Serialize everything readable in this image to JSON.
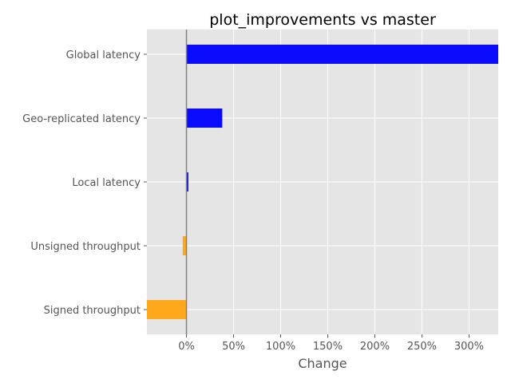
{
  "chart_data": {
    "type": "bar",
    "orientation": "horizontal",
    "title": "plot_improvements vs master",
    "xlabel": "Change",
    "ylabel": "",
    "categories": [
      "Global latency",
      "Geo-replicated latency",
      "Local latency",
      "Unsigned throughput",
      "Signed throughput"
    ],
    "values": [
      331,
      38,
      2,
      -4,
      -42
    ],
    "value_unit": "%",
    "xlim": [
      -42,
      331
    ],
    "x_ticks": [
      0,
      50,
      100,
      150,
      200,
      250,
      300
    ],
    "x_tick_labels": [
      "0%",
      "50%",
      "100%",
      "150%",
      "200%",
      "250%",
      "300%"
    ],
    "grid": true,
    "colors": {
      "positive": "#0b0bff",
      "negative": "#ffa81c",
      "background": "#e5e5e5",
      "grid": "#ffffff",
      "zero_line": "#808080"
    }
  }
}
